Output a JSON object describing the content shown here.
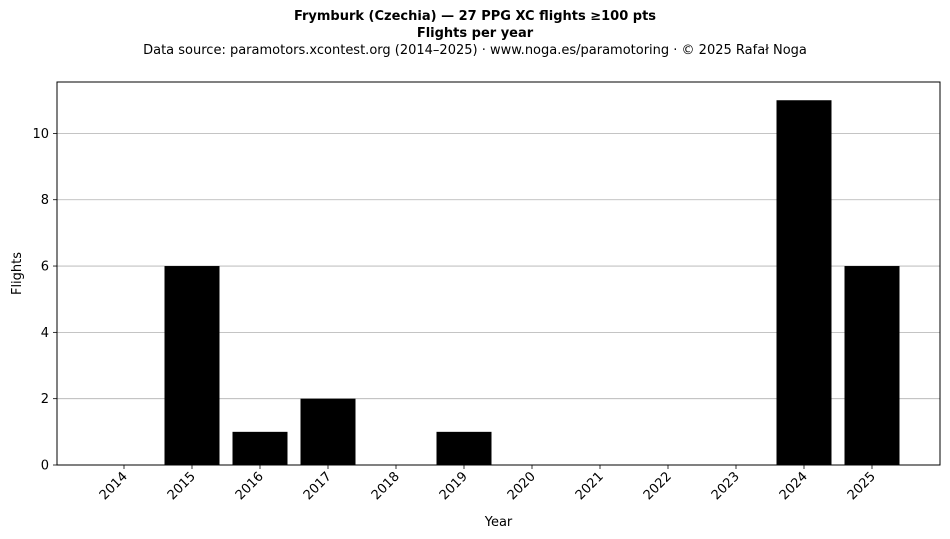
{
  "chart_data": {
    "type": "bar",
    "title": "Frymburk (Czechia)  —  27 PPG XC flights ≥100 pts",
    "subtitle": "Flights per year",
    "source_note": "Data source: paramotors.xcontest.org (2014–2025)  ·  www.noga.es/paramotoring  ·  © 2025 Rafał Noga",
    "xlabel": "Year",
    "ylabel": "Flights",
    "categories": [
      "2014",
      "2015",
      "2016",
      "2017",
      "2018",
      "2019",
      "2020",
      "2021",
      "2022",
      "2023",
      "2024",
      "2025"
    ],
    "values": [
      0,
      6,
      1,
      2,
      0,
      1,
      0,
      0,
      0,
      0,
      11,
      6
    ],
    "ylim": [
      0,
      11.55
    ],
    "yticks": [
      0,
      2,
      4,
      6,
      8,
      10
    ],
    "grid": "y",
    "bar_color": "#000000"
  }
}
